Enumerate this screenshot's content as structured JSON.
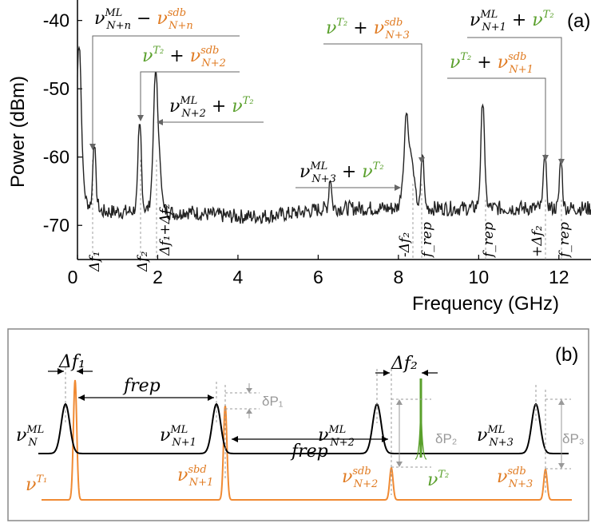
{
  "chart_data": [
    {
      "type": "line",
      "panel": "(a)",
      "xlabel": "Frequency (GHz)",
      "ylabel": "Power (dBm)",
      "xlim": [
        0,
        12.8
      ],
      "ylim": [
        -75,
        -37
      ],
      "xticks": [
        "0",
        "2",
        "4",
        "6",
        "8",
        "10",
        "12"
      ],
      "yticks": [
        "-40",
        "-50",
        "-60",
        "-70"
      ],
      "xtick_values": [
        0,
        2,
        4,
        6,
        8,
        10,
        12
      ],
      "ytick_values": [
        -40,
        -50,
        -60,
        -70
      ],
      "grid": false,
      "noise_floor_dbm": -67.5,
      "peaks": [
        {
          "x": 0.04,
          "y": -44
        },
        {
          "x": 0.42,
          "y": -59
        },
        {
          "x": 1.55,
          "y": -55.5
        },
        {
          "x": 1.95,
          "y": -48
        },
        {
          "x": 6.3,
          "y": -65.5
        },
        {
          "x": 8.2,
          "y": -55
        },
        {
          "x": 8.6,
          "y": -60.5
        },
        {
          "x": 10.1,
          "y": -52.5
        },
        {
          "x": 11.65,
          "y": -60.5
        },
        {
          "x": 12.05,
          "y": -61.5
        }
      ],
      "annotations": [
        {
          "main": "ν",
          "sup": "ML",
          "sub": "N+n",
          "op": " − ",
          "main2": "ν",
          "sup2": "sdb",
          "sub2": "N+n"
        },
        {
          "main": "ν",
          "sup": "T₂",
          "op": " + ",
          "main2": "ν",
          "sup2": "sdb",
          "sub2": "N+2"
        },
        {
          "main": "ν",
          "sup": "ML",
          "sub": "N+2",
          "op": " + ",
          "main2": "ν",
          "sup2": "T₂"
        },
        {
          "main": "ν",
          "sup": "ML",
          "sub": "N+3",
          "op": " + ",
          "main2": "ν",
          "sup2": "T₂"
        },
        {
          "main": "ν",
          "sup": "T₂",
          "op": " + ",
          "main2": "ν",
          "sup2": "sdb",
          "sub2": "N+3"
        },
        {
          "main": "ν",
          "sup": "ML",
          "sub": "N+1",
          "op": " + ",
          "main2": "ν",
          "sup2": "T₂"
        },
        {
          "main": "ν",
          "sup": "T₂",
          "op": " + ",
          "main2": "ν",
          "sup2": "sdb",
          "sub2": "N+1"
        }
      ],
      "marker_labels": [
        "Δf₁",
        "Δf₂",
        "Δf₁+Δf₂",
        "-Δf₂",
        "f_rep",
        "f_rep",
        "+Δf₂",
        "f_rep"
      ]
    },
    {
      "type": "diagram",
      "panel": "(b)",
      "labels": {
        "df1": "Δf₁",
        "df2": "Δf₂",
        "frep": "frep",
        "dP1": "δP₁",
        "dP2": "δP₂",
        "dP3": "δP₃",
        "mlN": "ν",
        "mlN_sup": "ML",
        "mlN_sub": "N",
        "mlN1": "ν",
        "mlN1_sup": "ML",
        "mlN1_sub": "N+1",
        "mlN2": "ν",
        "mlN2_sup": "ML",
        "mlN2_sub": "N+2",
        "mlN3": "ν",
        "mlN3_sup": "ML",
        "mlN3_sub": "N+3",
        "vT1": "ν",
        "vT1_sup": "T₁",
        "vT2": "ν",
        "vT2_sup": "T₂",
        "sbd1": "ν",
        "sbd1_sup": "sbd",
        "sbd1_sub": "N+1",
        "sdb2": "ν",
        "sdb2_sup": "sdb",
        "sdb2_sub": "N+2",
        "sdb3": "ν",
        "sdb3_sup": "sdb",
        "sdb3_sub": "N+3"
      },
      "colors": {
        "ml": "#000000",
        "sideband": "#f08a33",
        "tone2": "#5aa02c",
        "marker": "#999999"
      }
    }
  ]
}
